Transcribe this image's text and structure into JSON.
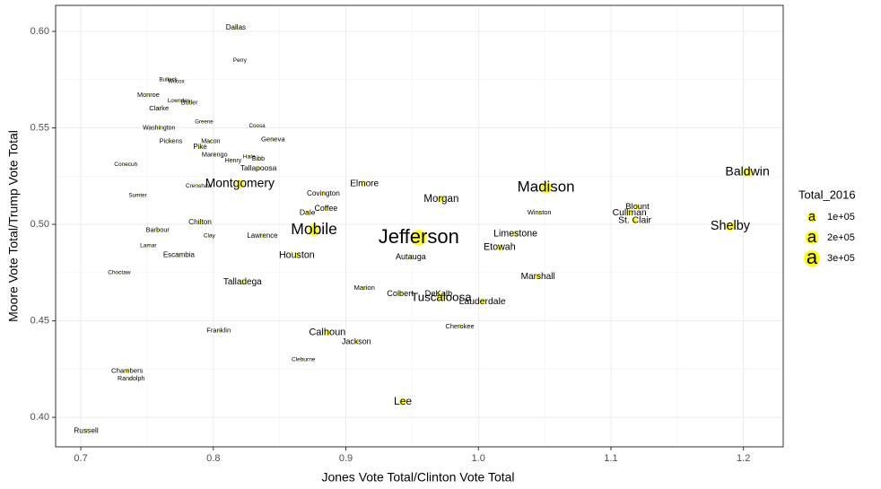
{
  "chart_data": {
    "type": "scatter",
    "x_label": "Jones Vote Total/Clinton Vote Total",
    "y_label": "Moore Vote Total/Trump Vote Total",
    "color": "#ffff00",
    "grid": true,
    "xlim": [
      0.681,
      1.23
    ],
    "ylim": [
      0.3847,
      0.6135
    ],
    "xticks": [
      0.7,
      0.8,
      0.9,
      {
        "value": 1,
        "label": "1.0"
      },
      1.1,
      1.2
    ],
    "yticks": [
      {
        "value": 0.6,
        "label": "0.60"
      },
      0.55,
      {
        "value": 0.5,
        "label": "0.50"
      },
      0.45,
      {
        "value": 0.4,
        "label": "0.40"
      }
    ],
    "labels": [
      "Dallas",
      "Perry",
      "Bullock",
      "Wilcox",
      "Monroe",
      "Lowndes",
      "Butler",
      "Clarke",
      "Greene",
      "Coosa",
      "Washington",
      "Pickens",
      "Macon",
      "Geneva",
      "Pike",
      "Marengo",
      "Hale",
      "Bibb",
      "Henry",
      "Conecuh",
      "Tallapoosa",
      "Crenshaw",
      "Montgomery",
      "Elmore",
      "Sumter",
      "Covington",
      "Coffee",
      "Dale",
      "Morgan",
      "Madison",
      "Baldwin",
      "Winston",
      "Blount",
      "Cullman",
      "St. Clair",
      "Shelby",
      "Chilton",
      "Barbour",
      "Clay",
      "Lawrence",
      "Mobile",
      "Jefferson",
      "Limestone",
      "Etowah",
      "Lamar",
      "Escambia",
      "Autauga",
      "Houston",
      "Choctaw",
      "Marshall",
      "Talladega",
      "Marion",
      "Colbert",
      "DeKalb",
      "Tuscaloosa",
      "Lauderdale",
      "Cherokee",
      "Franklin",
      "Calhoun",
      "Jackson",
      "Cleburne",
      "Chambers",
      "Randolph",
      "Lee",
      "Russell"
    ],
    "x": [
      0.817,
      0.82,
      0.766,
      0.772,
      0.751,
      0.774,
      0.782,
      0.759,
      0.793,
      0.833,
      0.759,
      0.768,
      0.798,
      0.845,
      0.79,
      0.801,
      0.827,
      0.834,
      0.815,
      0.734,
      0.834,
      0.789,
      0.82,
      0.914,
      0.743,
      0.883,
      0.885,
      0.871,
      0.972,
      1.051,
      1.203,
      1.046,
      1.12,
      1.114,
      1.118,
      1.19,
      0.79,
      0.758,
      0.797,
      0.837,
      0.876,
      0.955,
      1.028,
      1.016,
      0.751,
      0.774,
      0.949,
      0.863,
      0.729,
      1.045,
      0.822,
      0.914,
      0.941,
      0.97,
      0.972,
      1.003,
      0.986,
      0.804,
      0.886,
      0.908,
      0.868,
      0.735,
      0.738,
      0.943,
      0.704
    ],
    "values": [
      0.602,
      0.585,
      0.575,
      0.574,
      0.567,
      0.564,
      0.563,
      0.56,
      0.553,
      0.551,
      0.55,
      0.543,
      0.543,
      0.544,
      0.54,
      0.536,
      0.535,
      0.534,
      0.533,
      0.531,
      0.529,
      0.52,
      0.521,
      0.521,
      0.515,
      0.516,
      0.508,
      0.506,
      0.513,
      0.519,
      0.527,
      0.506,
      0.509,
      0.506,
      0.502,
      0.499,
      0.501,
      0.497,
      0.494,
      0.494,
      0.497,
      0.493,
      0.495,
      0.488,
      0.489,
      0.484,
      0.483,
      0.484,
      0.475,
      0.473,
      0.47,
      0.467,
      0.464,
      0.464,
      0.462,
      0.46,
      0.447,
      0.445,
      0.444,
      0.439,
      0.43,
      0.424,
      0.42,
      0.408,
      0.393
    ],
    "sizes": [
      15000,
      5000,
      5000,
      5000,
      10000,
      5000,
      9000,
      12000,
      4000,
      5000,
      8000,
      10000,
      9000,
      12000,
      14000,
      10000,
      7000,
      9000,
      8000,
      6000,
      19000,
      6000,
      90000,
      35000,
      5000,
      16000,
      21000,
      20000,
      52000,
      155000,
      95000,
      11000,
      26000,
      38000,
      38000,
      100000,
      17000,
      11000,
      6000,
      14000,
      170000,
      300000,
      40000,
      41000,
      6000,
      15000,
      24000,
      41000,
      6000,
      35000,
      33000,
      13000,
      25000,
      26000,
      80000,
      38000,
      11000,
      12000,
      45000,
      22000,
      6000,
      13000,
      9000,
      60000,
      18000
    ],
    "legend": {
      "title": "Total_2016",
      "key": "a",
      "values": [
        {
          "value": 100000,
          "label": "1e+05"
        },
        {
          "value": 200000,
          "label": "2e+05"
        },
        {
          "value": 300000,
          "label": "3e+05"
        }
      ]
    }
  }
}
